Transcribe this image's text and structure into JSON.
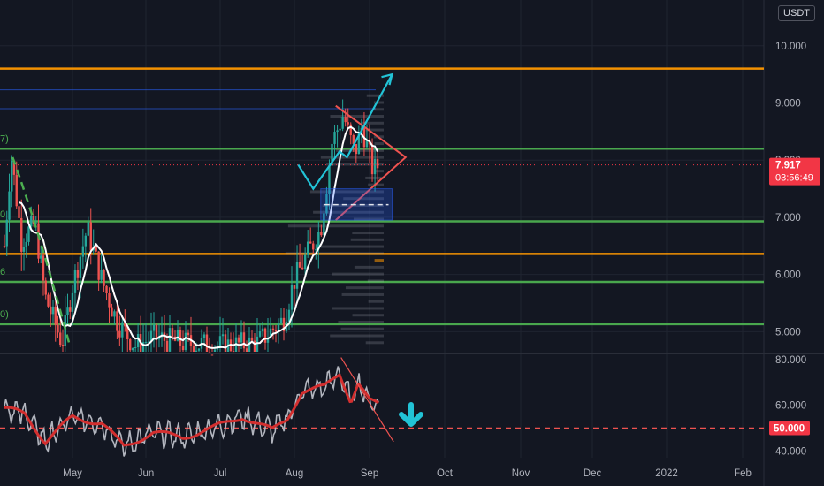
{
  "currency": "USDT",
  "colors": {
    "background": "#131722",
    "grid": "#1f2430",
    "green_level": "#4caf50",
    "orange_level": "#ff9800",
    "blue_level": "#2962ff",
    "up_candle": "#26a69a",
    "down_candle": "#ef5350",
    "projection": "#22c3d6",
    "rsi_line": "#b2b5be",
    "rsi_ma": "#d32f2f",
    "price_badge": "#f23645",
    "ma_line": "#ffffff"
  },
  "edge_labels": [
    "7)",
    "0",
    "6",
    "0)"
  ],
  "chart_data": [
    {
      "type": "candlestick",
      "name": "price",
      "ylim": [
        4.65,
        10.8
      ],
      "y_ticks": [
        "10.000",
        "9.000",
        "8.000",
        "7.000",
        "6.000",
        "5.000"
      ],
      "y_tick_values": [
        10,
        9,
        8,
        7,
        6,
        5
      ],
      "x_ticks": [
        "May",
        "Jun",
        "Jul",
        "Aug",
        "Sep",
        "Oct",
        "Nov",
        "Dec",
        "2022",
        "Feb"
      ],
      "current_price": "7.917",
      "current_price_value": 7.917,
      "countdown": "03:56:49",
      "horizontal_levels": [
        {
          "value": 9.6,
          "color": "orange"
        },
        {
          "value": 8.2,
          "color": "green"
        },
        {
          "value": 6.93,
          "color": "green"
        },
        {
          "value": 6.36,
          "color": "orange"
        },
        {
          "value": 5.87,
          "color": "green"
        },
        {
          "value": 5.13,
          "color": "green"
        },
        {
          "value": 9.23,
          "color": "blue"
        },
        {
          "value": 8.9,
          "color": "blue"
        }
      ],
      "projection_path": [
        [
          8.1,
          7.92
        ],
        [
          8.5,
          7.5
        ],
        [
          9.2,
          8.15
        ],
        [
          9.4,
          8.05
        ],
        [
          10.6,
          9.5
        ]
      ],
      "target_zone": {
        "x0": 8.7,
        "x1": 10.6,
        "top": 7.5,
        "bottom": 6.95,
        "mid": 7.22
      }
    },
    {
      "type": "line",
      "name": "rsi",
      "ylim": [
        37,
        82
      ],
      "y_ticks": [
        "80.000",
        "60.000",
        "40.000"
      ],
      "y_tick_values": [
        80,
        60,
        40
      ],
      "threshold": "50.000",
      "threshold_value": 50
    }
  ]
}
